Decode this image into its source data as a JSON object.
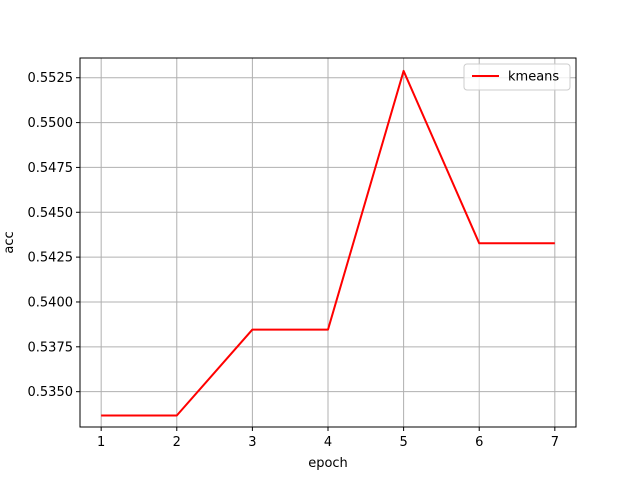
{
  "chart_data": {
    "type": "line",
    "title": "",
    "xlabel": "epoch",
    "ylabel": "acc",
    "x": [
      1,
      2,
      3,
      4,
      5,
      6,
      7
    ],
    "series": [
      {
        "name": "kmeans",
        "color": "#ff0000",
        "values": [
          0.53367,
          0.53367,
          0.53846,
          0.53846,
          0.55288,
          0.54327,
          0.54327
        ]
      }
    ],
    "xlim": [
      0.72,
      7.28
    ],
    "ylim": [
      0.53303,
      0.5536
    ],
    "xticks": [
      1,
      2,
      3,
      4,
      5,
      6,
      7
    ],
    "yticks": [
      0.535,
      0.5375,
      0.54,
      0.5425,
      0.545,
      0.5475,
      0.55,
      0.5525
    ],
    "ytick_labels": [
      "0.5350",
      "0.5375",
      "0.5400",
      "0.5425",
      "0.5450",
      "0.5475",
      "0.5500",
      "0.5525"
    ],
    "grid": true,
    "legend_position": "top-right"
  }
}
